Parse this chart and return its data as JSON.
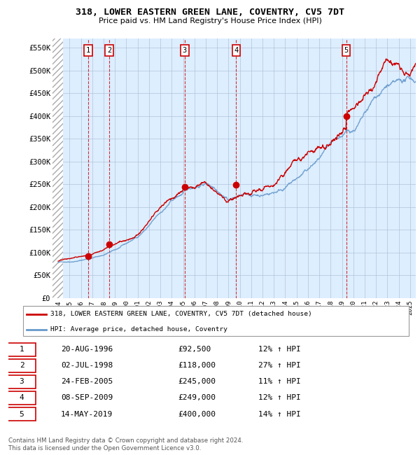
{
  "title": "318, LOWER EASTERN GREEN LANE, COVENTRY, CV5 7DT",
  "subtitle": "Price paid vs. HM Land Registry's House Price Index (HPI)",
  "ylabel_ticks": [
    "£0",
    "£50K",
    "£100K",
    "£150K",
    "£200K",
    "£250K",
    "£300K",
    "£350K",
    "£400K",
    "£450K",
    "£500K",
    "£550K"
  ],
  "ytick_values": [
    0,
    50000,
    100000,
    150000,
    200000,
    250000,
    300000,
    350000,
    400000,
    450000,
    500000,
    550000
  ],
  "ylim": [
    0,
    570000
  ],
  "xlim_start": 1993.5,
  "xlim_end": 2025.5,
  "hatch_end": 1994.45,
  "sale_dates_num": [
    1996.637,
    1998.503,
    2005.147,
    2009.678,
    2019.368
  ],
  "sale_prices": [
    92500,
    118000,
    245000,
    249000,
    400000
  ],
  "sale_labels": [
    "1",
    "2",
    "3",
    "4",
    "5"
  ],
  "legend_line1": "318, LOWER EASTERN GREEN LANE, COVENTRY, CV5 7DT (detached house)",
  "legend_line2": "HPI: Average price, detached house, Coventry",
  "table_data": [
    [
      "1",
      "20-AUG-1996",
      "£92,500",
      "12% ↑ HPI"
    ],
    [
      "2",
      "02-JUL-1998",
      "£118,000",
      "27% ↑ HPI"
    ],
    [
      "3",
      "24-FEB-2005",
      "£245,000",
      "11% ↑ HPI"
    ],
    [
      "4",
      "08-SEP-2009",
      "£249,000",
      "12% ↑ HPI"
    ],
    [
      "5",
      "14-MAY-2019",
      "£400,000",
      "14% ↑ HPI"
    ]
  ],
  "footer": "Contains HM Land Registry data © Crown copyright and database right 2024.\nThis data is licensed under the Open Government Licence v3.0.",
  "red_color": "#cc0000",
  "blue_color": "#6699cc",
  "plot_bg": "#ddeeff",
  "hatch_color": "#bbbbbb"
}
